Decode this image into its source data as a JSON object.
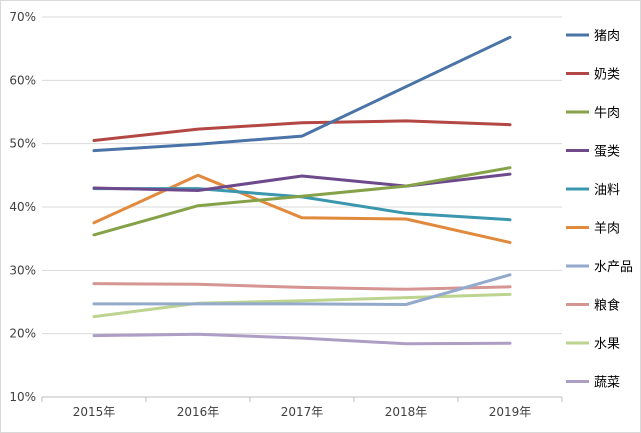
{
  "chart_data": {
    "type": "line",
    "categories": [
      "2015年",
      "2016年",
      "2017年",
      "2018年",
      "2019年"
    ],
    "ylim": [
      10,
      70
    ],
    "yticks": [
      10,
      20,
      30,
      40,
      50,
      60,
      70
    ],
    "ytick_labels": [
      "10%",
      "20%",
      "30%",
      "40%",
      "50%",
      "60%",
      "70%"
    ],
    "grid": "horizontal",
    "legend_position": "right",
    "series": [
      {
        "name": "猪肉",
        "color": "#4a73a8",
        "values": [
          48.9,
          49.9,
          51.2,
          59.0,
          66.8
        ]
      },
      {
        "name": "奶类",
        "color": "#b24743",
        "values": [
          50.5,
          52.3,
          53.3,
          53.6,
          53.0
        ]
      },
      {
        "name": "牛肉",
        "color": "#85a249",
        "values": [
          35.6,
          40.2,
          41.7,
          43.3,
          46.2
        ]
      },
      {
        "name": "蛋类",
        "color": "#6e4a8c",
        "values": [
          43.0,
          42.6,
          44.9,
          43.3,
          45.2
        ]
      },
      {
        "name": "油料",
        "color": "#3a97ad",
        "values": [
          42.9,
          42.9,
          41.6,
          39.0,
          38.0
        ]
      },
      {
        "name": "羊肉",
        "color": "#e1893c",
        "values": [
          37.5,
          45.0,
          38.3,
          38.1,
          34.4
        ]
      },
      {
        "name": "水产品",
        "color": "#93aacc",
        "values": [
          24.7,
          24.7,
          24.7,
          24.6,
          29.3
        ]
      },
      {
        "name": "粮食",
        "color": "#d59593",
        "values": [
          27.9,
          27.8,
          27.3,
          27.0,
          27.4
        ]
      },
      {
        "name": "水果",
        "color": "#bcd48f",
        "values": [
          22.7,
          24.8,
          25.2,
          25.7,
          26.2
        ]
      },
      {
        "name": "蔬菜",
        "color": "#ad9ec5",
        "values": [
          19.7,
          19.9,
          19.3,
          18.4,
          18.5
        ]
      }
    ]
  }
}
